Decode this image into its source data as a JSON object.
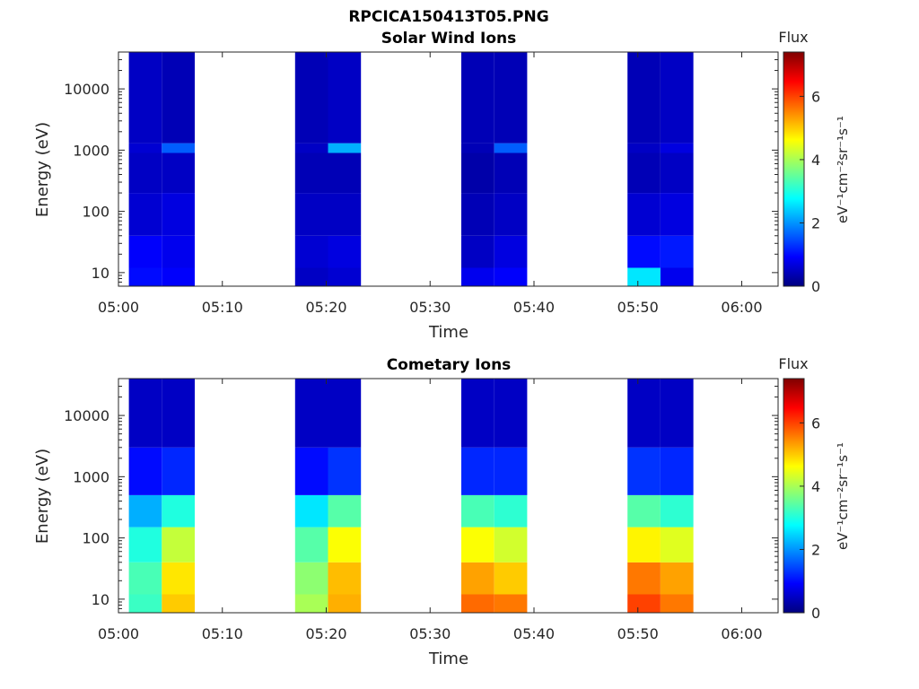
{
  "figure_title": "RPCICA150413T05.PNG",
  "colormap": [
    "#00007f",
    "#0000ff",
    "#007fff",
    "#00ffff",
    "#7fff7f",
    "#ffff00",
    "#ff7f00",
    "#ff0000",
    "#7f0000"
  ],
  "chart_data": [
    {
      "type": "heatmap",
      "title": "Solar Wind Ions",
      "xlabel": "Time",
      "ylabel": "Energy (eV)",
      "x_ticks": [
        "05:00",
        "05:10",
        "05:20",
        "05:30",
        "05:40",
        "05:50",
        "06:00"
      ],
      "x_range_min": [
        0,
        63.5
      ],
      "y_scale": "log",
      "y_range_eV": [
        6,
        40000
      ],
      "y_ticks": [
        {
          "value": 10,
          "label": "10"
        },
        {
          "value": 100,
          "label": "100"
        },
        {
          "value": 1000,
          "label": "1000"
        },
        {
          "value": 10000,
          "label": "10000"
        }
      ],
      "colorbar": {
        "title": "Flux",
        "label": "eV⁻¹cm⁻²sr⁻¹s⁻¹",
        "range": [
          0,
          7.4
        ],
        "ticks": [
          "0",
          "2",
          "4",
          "6"
        ]
      },
      "scan_start_minutes": [
        1.0,
        4.17,
        17.0,
        20.17,
        33.0,
        36.17,
        49.0,
        52.17
      ],
      "scan_duration_minutes": 3.17,
      "bands": [
        {
          "e_lo": 6,
          "e_hi": 12,
          "flux": [
            1.0,
            0.9,
            0.5,
            0.6,
            0.8,
            0.9,
            2.6,
            0.8
          ]
        },
        {
          "e_lo": 12,
          "e_hi": 40,
          "flux": [
            0.9,
            0.8,
            0.6,
            0.7,
            0.5,
            0.7,
            1.0,
            1.1
          ]
        },
        {
          "e_lo": 40,
          "e_hi": 200,
          "flux": [
            0.6,
            0.7,
            0.5,
            0.5,
            0.4,
            0.5,
            0.6,
            0.7
          ]
        },
        {
          "e_lo": 200,
          "e_hi": 900,
          "flux": [
            0.5,
            0.5,
            0.4,
            0.4,
            0.3,
            0.4,
            0.4,
            0.5
          ]
        },
        {
          "e_lo": 900,
          "e_hi": 1300,
          "flux": [
            0.6,
            1.6,
            0.5,
            2.2,
            0.4,
            1.6,
            0.5,
            0.7
          ]
        },
        {
          "e_lo": 1300,
          "e_hi": 40000,
          "flux": [
            0.5,
            0.4,
            0.4,
            0.5,
            0.4,
            0.4,
            0.4,
            0.5
          ]
        }
      ]
    },
    {
      "type": "heatmap",
      "title": "Cometary Ions",
      "xlabel": "Time",
      "ylabel": "Energy (eV)",
      "x_ticks": [
        "05:00",
        "05:10",
        "05:20",
        "05:30",
        "05:40",
        "05:50",
        "06:00"
      ],
      "x_range_min": [
        0,
        63.5
      ],
      "y_scale": "log",
      "y_range_eV": [
        6,
        40000
      ],
      "y_ticks": [
        {
          "value": 10,
          "label": "10"
        },
        {
          "value": 100,
          "label": "100"
        },
        {
          "value": 1000,
          "label": "1000"
        },
        {
          "value": 10000,
          "label": "10000"
        }
      ],
      "colorbar": {
        "title": "Flux",
        "label": "eV⁻¹cm⁻²sr⁻¹s⁻¹",
        "range": [
          0,
          7.4
        ],
        "ticks": [
          "0",
          "2",
          "4",
          "6"
        ]
      },
      "scan_start_minutes": [
        1.0,
        4.17,
        17.0,
        20.17,
        33.0,
        36.17,
        49.0,
        52.17
      ],
      "scan_duration_minutes": 3.17,
      "bands": [
        {
          "e_lo": 6,
          "e_hi": 12,
          "flux": [
            3.2,
            5.0,
            4.0,
            5.2,
            5.7,
            5.6,
            6.0,
            5.6
          ]
        },
        {
          "e_lo": 12,
          "e_hi": 40,
          "flux": [
            3.3,
            4.8,
            3.8,
            5.1,
            5.3,
            5.0,
            5.6,
            5.3
          ]
        },
        {
          "e_lo": 40,
          "e_hi": 150,
          "flux": [
            3.0,
            4.2,
            3.4,
            4.6,
            4.6,
            4.3,
            4.7,
            4.4
          ]
        },
        {
          "e_lo": 150,
          "e_hi": 500,
          "flux": [
            2.2,
            3.0,
            2.6,
            3.4,
            3.3,
            3.1,
            3.4,
            3.1
          ]
        },
        {
          "e_lo": 500,
          "e_hi": 3000,
          "flux": [
            1.0,
            1.2,
            1.0,
            1.3,
            1.2,
            1.2,
            1.3,
            1.2
          ]
        },
        {
          "e_lo": 3000,
          "e_hi": 40000,
          "flux": [
            0.5,
            0.5,
            0.5,
            0.5,
            0.5,
            0.5,
            0.5,
            0.5
          ]
        }
      ]
    }
  ]
}
